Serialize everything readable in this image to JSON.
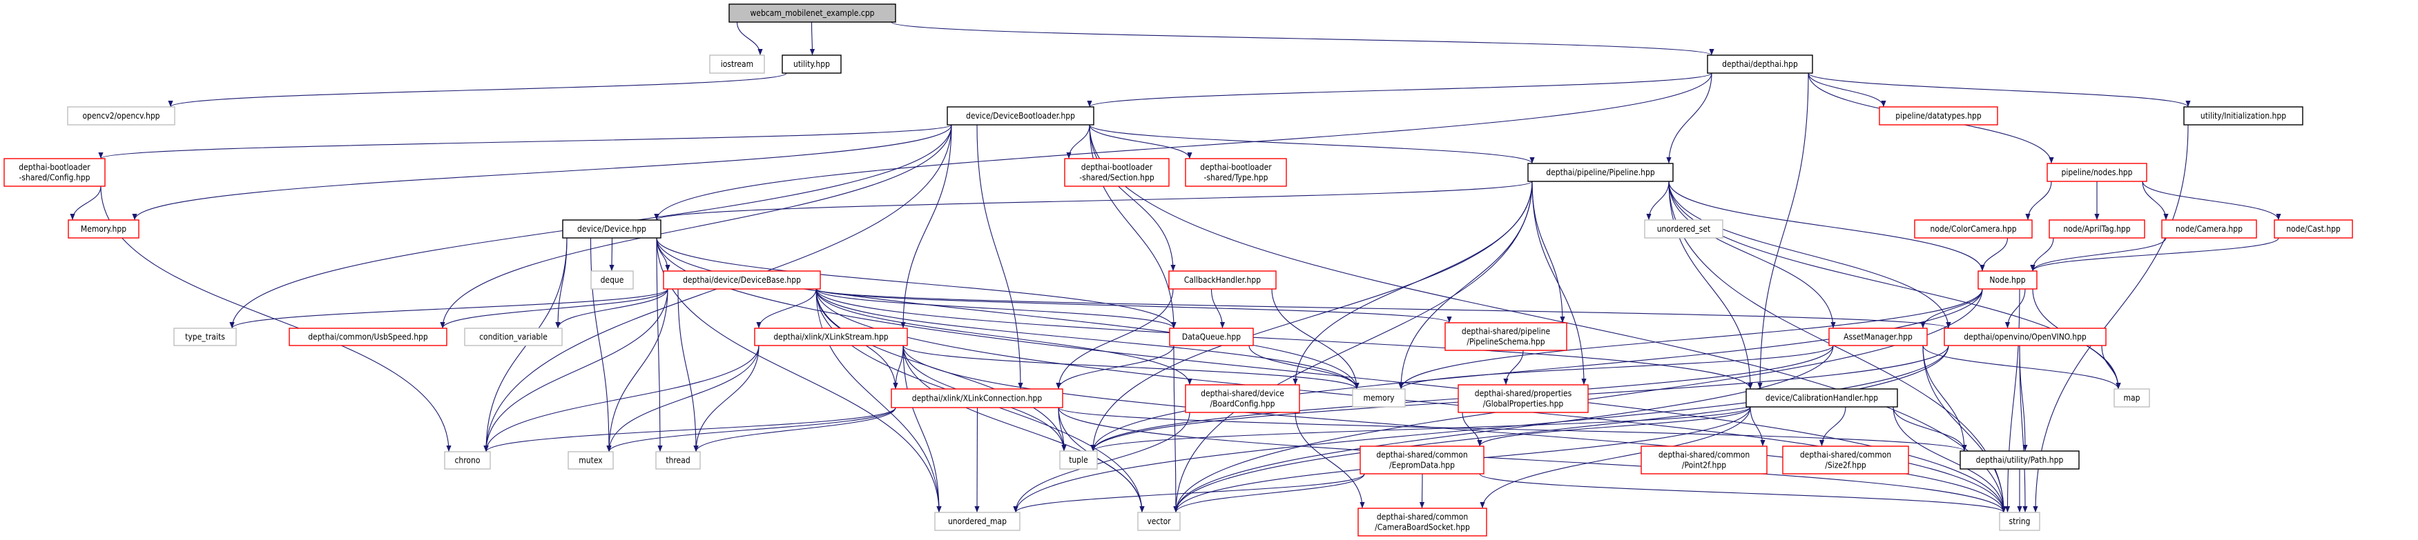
{
  "colors": {
    "edge": "#191970",
    "root_fill": "#bfbfbf",
    "documented_border": "#000000",
    "undocumented_border": "#ff0000",
    "system_border": "#bfbfbf"
  },
  "nodes": [
    {
      "id": "root",
      "label": [
        "webcam_mobilenet_example.cpp"
      ],
      "kind": "root"
    },
    {
      "id": "iostream",
      "label": [
        "iostream"
      ],
      "kind": "system"
    },
    {
      "id": "utility",
      "label": [
        "utility.hpp"
      ],
      "kind": "documented"
    },
    {
      "id": "depthai",
      "label": [
        "depthai/depthai.hpp"
      ],
      "kind": "documented"
    },
    {
      "id": "opencv",
      "label": [
        "opencv2/opencv.hpp"
      ],
      "kind": "system"
    },
    {
      "id": "bootloader",
      "label": [
        "device/DeviceBootloader.hpp"
      ],
      "kind": "documented"
    },
    {
      "id": "datatypes",
      "label": [
        "pipeline/datatypes.hpp"
      ],
      "kind": "undocumented"
    },
    {
      "id": "init",
      "label": [
        "utility/Initialization.hpp"
      ],
      "kind": "documented"
    },
    {
      "id": "blconfig",
      "label": [
        "depthai-bootloader",
        "-shared/Config.hpp"
      ],
      "kind": "undocumented"
    },
    {
      "id": "blsection",
      "label": [
        "depthai-bootloader",
        "-shared/Section.hpp"
      ],
      "kind": "undocumented"
    },
    {
      "id": "bltype",
      "label": [
        "depthai-bootloader",
        "-shared/Type.hpp"
      ],
      "kind": "undocumented"
    },
    {
      "id": "pipeline",
      "label": [
        "depthai/pipeline/Pipeline.hpp"
      ],
      "kind": "documented"
    },
    {
      "id": "nodes",
      "label": [
        "pipeline/nodes.hpp"
      ],
      "kind": "undocumented"
    },
    {
      "id": "memoryhpp",
      "label": [
        "Memory.hpp"
      ],
      "kind": "undocumented"
    },
    {
      "id": "device",
      "label": [
        "device/Device.hpp"
      ],
      "kind": "documented"
    },
    {
      "id": "uset",
      "label": [
        "unordered_set"
      ],
      "kind": "system"
    },
    {
      "id": "colorcam",
      "label": [
        "node/ColorCamera.hpp"
      ],
      "kind": "undocumented"
    },
    {
      "id": "apriltag",
      "label": [
        "node/AprilTag.hpp"
      ],
      "kind": "undocumented"
    },
    {
      "id": "camera",
      "label": [
        "node/Camera.hpp"
      ],
      "kind": "undocumented"
    },
    {
      "id": "cast",
      "label": [
        "node/Cast.hpp"
      ],
      "kind": "undocumented"
    },
    {
      "id": "deque",
      "label": [
        "deque"
      ],
      "kind": "system"
    },
    {
      "id": "devbase",
      "label": [
        "depthai/device/DeviceBase.hpp"
      ],
      "kind": "undocumented"
    },
    {
      "id": "callback",
      "label": [
        "CallbackHandler.hpp"
      ],
      "kind": "undocumented"
    },
    {
      "id": "node",
      "label": [
        "Node.hpp"
      ],
      "kind": "undocumented"
    },
    {
      "id": "typetraits",
      "label": [
        "type_traits"
      ],
      "kind": "system"
    },
    {
      "id": "usbspeed",
      "label": [
        "depthai/common/UsbSpeed.hpp"
      ],
      "kind": "undocumented"
    },
    {
      "id": "condvar",
      "label": [
        "condition_variable"
      ],
      "kind": "system"
    },
    {
      "id": "xstream",
      "label": [
        "depthai/xlink/XLinkStream.hpp"
      ],
      "kind": "undocumented"
    },
    {
      "id": "dataqueue",
      "label": [
        "DataQueue.hpp"
      ],
      "kind": "undocumented"
    },
    {
      "id": "schema",
      "label": [
        "depthai-shared/pipeline",
        "/PipelineSchema.hpp"
      ],
      "kind": "undocumented"
    },
    {
      "id": "asset",
      "label": [
        "AssetManager.hpp"
      ],
      "kind": "undocumented"
    },
    {
      "id": "openvino",
      "label": [
        "depthai/openvino/OpenVINO.hpp"
      ],
      "kind": "undocumented"
    },
    {
      "id": "xconn",
      "label": [
        "depthai/xlink/XLinkConnection.hpp"
      ],
      "kind": "undocumented"
    },
    {
      "id": "boardcfg",
      "label": [
        "depthai-shared/device",
        "/BoardConfig.hpp"
      ],
      "kind": "undocumented"
    },
    {
      "id": "memory",
      "label": [
        "memory"
      ],
      "kind": "system"
    },
    {
      "id": "globalprops",
      "label": [
        "depthai-shared/properties",
        "/GlobalProperties.hpp"
      ],
      "kind": "undocumented"
    },
    {
      "id": "calib",
      "label": [
        "device/CalibrationHandler.hpp"
      ],
      "kind": "documented"
    },
    {
      "id": "map",
      "label": [
        "map"
      ],
      "kind": "system"
    },
    {
      "id": "chrono",
      "label": [
        "chrono"
      ],
      "kind": "system"
    },
    {
      "id": "mutex",
      "label": [
        "mutex"
      ],
      "kind": "system"
    },
    {
      "id": "thread",
      "label": [
        "thread"
      ],
      "kind": "system"
    },
    {
      "id": "tuple",
      "label": [
        "tuple"
      ],
      "kind": "system"
    },
    {
      "id": "eeprom",
      "label": [
        "depthai-shared/common",
        "/EepromData.hpp"
      ],
      "kind": "undocumented"
    },
    {
      "id": "point2f",
      "label": [
        "depthai-shared/common",
        "/Point2f.hpp"
      ],
      "kind": "undocumented"
    },
    {
      "id": "size2f",
      "label": [
        "depthai-shared/common",
        "/Size2f.hpp"
      ],
      "kind": "undocumented"
    },
    {
      "id": "path",
      "label": [
        "depthai/utility/Path.hpp"
      ],
      "kind": "documented"
    },
    {
      "id": "umap",
      "label": [
        "unordered_map"
      ],
      "kind": "system"
    },
    {
      "id": "vector",
      "label": [
        "vector"
      ],
      "kind": "system"
    },
    {
      "id": "camsocket",
      "label": [
        "depthai-shared/common",
        "/CameraBoardSocket.hpp"
      ],
      "kind": "undocumented"
    },
    {
      "id": "string",
      "label": [
        "string"
      ],
      "kind": "system"
    }
  ],
  "edges": [
    [
      "root",
      "iostream"
    ],
    [
      "root",
      "utility"
    ],
    [
      "root",
      "depthai"
    ],
    [
      "utility",
      "opencv"
    ],
    [
      "depthai",
      "bootloader"
    ],
    [
      "depthai",
      "device"
    ],
    [
      "depthai",
      "pipeline"
    ],
    [
      "depthai",
      "datatypes"
    ],
    [
      "depthai",
      "nodes"
    ],
    [
      "depthai",
      "init"
    ],
    [
      "depthai",
      "calib"
    ],
    [
      "init",
      "string"
    ],
    [
      "bootloader",
      "blconfig"
    ],
    [
      "bootloader",
      "memoryhpp"
    ],
    [
      "bootloader",
      "blsection"
    ],
    [
      "bootloader",
      "bltype"
    ],
    [
      "bootloader",
      "pipeline"
    ],
    [
      "bootloader",
      "typetraits"
    ],
    [
      "bootloader",
      "usbspeed"
    ],
    [
      "bootloader",
      "chrono"
    ],
    [
      "bootloader",
      "xstream"
    ],
    [
      "bootloader",
      "xconn"
    ],
    [
      "bootloader",
      "dataqueue"
    ],
    [
      "bootloader",
      "callback"
    ],
    [
      "bootloader",
      "string"
    ],
    [
      "blconfig",
      "memoryhpp"
    ],
    [
      "blconfig",
      "chrono"
    ],
    [
      "pipeline",
      "device"
    ],
    [
      "pipeline",
      "uset"
    ],
    [
      "pipeline",
      "node"
    ],
    [
      "pipeline",
      "asset"
    ],
    [
      "pipeline",
      "openvino"
    ],
    [
      "pipeline",
      "schema"
    ],
    [
      "pipeline",
      "globalprops"
    ],
    [
      "pipeline",
      "boardcfg"
    ],
    [
      "pipeline",
      "memory"
    ],
    [
      "pipeline",
      "vector"
    ],
    [
      "pipeline",
      "map"
    ],
    [
      "pipeline",
      "string"
    ],
    [
      "pipeline",
      "calib"
    ],
    [
      "pipeline",
      "tuple"
    ],
    [
      "nodes",
      "colorcam"
    ],
    [
      "nodes",
      "apriltag"
    ],
    [
      "nodes",
      "camera"
    ],
    [
      "nodes",
      "cast"
    ],
    [
      "colorcam",
      "node"
    ],
    [
      "apriltag",
      "node"
    ],
    [
      "camera",
      "node"
    ],
    [
      "cast",
      "node"
    ],
    [
      "node",
      "asset"
    ],
    [
      "node",
      "openvino"
    ],
    [
      "node",
      "map"
    ],
    [
      "node",
      "string"
    ],
    [
      "node",
      "memory"
    ],
    [
      "node",
      "tuple"
    ],
    [
      "node",
      "vector"
    ],
    [
      "device",
      "deque"
    ],
    [
      "device",
      "devbase"
    ],
    [
      "device",
      "condvar"
    ],
    [
      "device",
      "chrono"
    ],
    [
      "device",
      "mutex"
    ],
    [
      "device",
      "memory"
    ],
    [
      "device",
      "dataqueue"
    ],
    [
      "device",
      "umap"
    ],
    [
      "device",
      "string"
    ],
    [
      "device",
      "thread"
    ],
    [
      "devbase",
      "typetraits"
    ],
    [
      "devbase",
      "usbspeed"
    ],
    [
      "devbase",
      "condvar"
    ],
    [
      "devbase",
      "chrono"
    ],
    [
      "devbase",
      "mutex"
    ],
    [
      "devbase",
      "thread"
    ],
    [
      "devbase",
      "xstream"
    ],
    [
      "devbase",
      "xconn"
    ],
    [
      "devbase",
      "dataqueue"
    ],
    [
      "devbase",
      "memory"
    ],
    [
      "devbase",
      "tuple"
    ],
    [
      "devbase",
      "vector"
    ],
    [
      "devbase",
      "umap"
    ],
    [
      "devbase",
      "schema"
    ],
    [
      "devbase",
      "openvino"
    ],
    [
      "devbase",
      "calib"
    ],
    [
      "devbase",
      "string"
    ],
    [
      "devbase",
      "boardcfg"
    ],
    [
      "callback",
      "dataqueue"
    ],
    [
      "callback",
      "xconn"
    ],
    [
      "callback",
      "memory"
    ],
    [
      "dataqueue",
      "xconn"
    ],
    [
      "dataqueue",
      "memory"
    ],
    [
      "dataqueue",
      "vector"
    ],
    [
      "xstream",
      "xconn"
    ],
    [
      "xstream",
      "chrono"
    ],
    [
      "xstream",
      "mutex"
    ],
    [
      "xstream",
      "thread"
    ],
    [
      "xstream",
      "tuple"
    ],
    [
      "xstream",
      "umap"
    ],
    [
      "xstream",
      "vector"
    ],
    [
      "xstream",
      "memory"
    ],
    [
      "xstream",
      "string"
    ],
    [
      "xconn",
      "chrono"
    ],
    [
      "xconn",
      "mutex"
    ],
    [
      "xconn",
      "thread"
    ],
    [
      "xconn",
      "tuple"
    ],
    [
      "xconn",
      "umap"
    ],
    [
      "xconn",
      "vector"
    ],
    [
      "xconn",
      "string"
    ],
    [
      "xconn",
      "path"
    ],
    [
      "boardcfg",
      "camsocket"
    ],
    [
      "boardcfg",
      "umap"
    ],
    [
      "schema",
      "globalprops"
    ],
    [
      "globalprops",
      "eeprom"
    ],
    [
      "asset",
      "memory"
    ],
    [
      "asset",
      "map"
    ],
    [
      "asset",
      "path"
    ],
    [
      "asset",
      "string"
    ],
    [
      "asset",
      "vector"
    ],
    [
      "asset",
      "tuple"
    ],
    [
      "openvino",
      "path"
    ],
    [
      "openvino",
      "map"
    ],
    [
      "openvino",
      "string"
    ],
    [
      "openvino",
      "vector"
    ],
    [
      "openvino",
      "tuple"
    ],
    [
      "openvino",
      "umap"
    ],
    [
      "calib",
      "eeprom"
    ],
    [
      "calib",
      "point2f"
    ],
    [
      "calib",
      "size2f"
    ],
    [
      "calib",
      "path"
    ],
    [
      "calib",
      "string"
    ],
    [
      "calib",
      "camsocket"
    ],
    [
      "calib",
      "vector"
    ],
    [
      "calib",
      "tuple"
    ],
    [
      "eeprom",
      "camsocket"
    ],
    [
      "eeprom",
      "vector"
    ],
    [
      "eeprom",
      "umap"
    ],
    [
      "eeprom",
      "string"
    ],
    [
      "path",
      "string"
    ]
  ]
}
